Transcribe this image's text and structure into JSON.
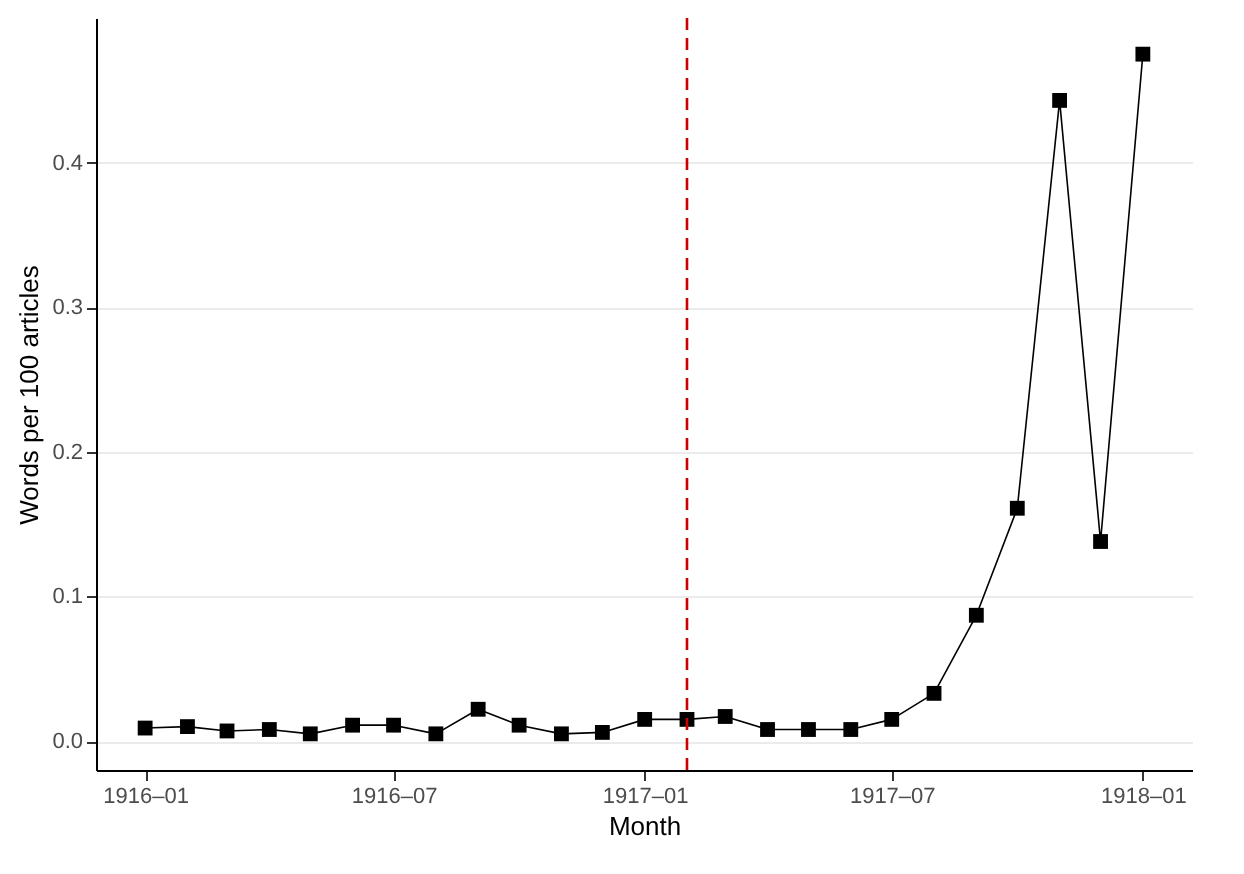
{
  "chart_data": {
    "type": "line",
    "xlabel": "Month",
    "ylabel": "Words per 100 articles",
    "x": [
      "1916-01",
      "1916-02",
      "1916-03",
      "1916-04",
      "1916-05",
      "1916-06",
      "1916-07",
      "1916-08",
      "1916-09",
      "1916-10",
      "1916-11",
      "1916-12",
      "1917-01",
      "1917-02",
      "1917-03",
      "1917-04",
      "1917-05",
      "1917-06",
      "1917-07",
      "1917-08",
      "1917-09",
      "1917-10",
      "1917-11",
      "1917-12",
      "1918-01"
    ],
    "series": [
      {
        "color": "#000000",
        "values": [
          0.009,
          0.01,
          0.007,
          0.008,
          0.005,
          0.011,
          0.011,
          0.005,
          0.022,
          0.011,
          0.005,
          0.006,
          0.015,
          0.015,
          0.017,
          0.008,
          0.008,
          0.008,
          0.015,
          0.033,
          0.087,
          0.161,
          0.443,
          0.138,
          0.475
        ]
      }
    ],
    "xlim": [
      "1915-11-26",
      "1918-02-06"
    ],
    "xticks": [
      {
        "value": "1916-01",
        "label": "1916–01"
      },
      {
        "value": "1916-07",
        "label": "1916–07"
      },
      {
        "value": "1917-01",
        "label": "1917–01"
      },
      {
        "value": "1917-07",
        "label": "1917–07"
      },
      {
        "value": "1918-01",
        "label": "1918–01"
      }
    ],
    "ylim": [
      -0.02,
      0.5
    ],
    "yticks": [
      {
        "value": 0,
        "label": "0.0"
      },
      {
        "value": 0.1,
        "label": "0.1"
      },
      {
        "value": 0.2,
        "label": "0.2"
      },
      {
        "value": 0.3,
        "label": "0.3"
      },
      {
        "value": 0.4,
        "label": "0.4"
      }
    ],
    "grid": "y",
    "marker": "square",
    "line_style": "solid",
    "ref_lines": [
      {
        "axis": "x",
        "value": "1917-02",
        "color": "#cc0000",
        "line_style": "dashed"
      }
    ]
  }
}
